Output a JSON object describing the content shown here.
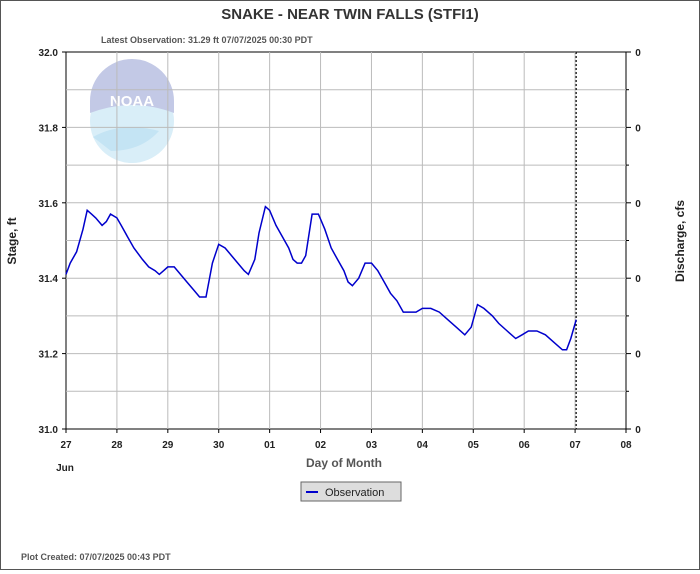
{
  "title": "SNAKE - NEAR TWIN FALLS  (STFI1)",
  "latest_observation": "Latest Observation: 31.29 ft 07/07/2025 00:30 PDT",
  "plot_created": "Plot Created: 07/07/2025 00:43 PDT",
  "logo_text": "NOAA",
  "colors": {
    "series": "#0000cc",
    "grid": "#bbbbbb",
    "marker": "#000000"
  },
  "chart_data": {
    "type": "line",
    "title": "SNAKE - NEAR TWIN FALLS  (STFI1)",
    "xlabel": "Day of Month",
    "ylabel": "Stage, ft",
    "y2label": "Discharge, cfs",
    "month_label": "Jun",
    "x_ticks": [
      "27",
      "28",
      "29",
      "30",
      "01",
      "02",
      "03",
      "04",
      "05",
      "06",
      "07",
      "08"
    ],
    "xlim": [
      "2025-06-27",
      "2025-07-08"
    ],
    "ylim": [
      31.0,
      32.0
    ],
    "y_ticks": [
      "31.0",
      "31.2",
      "31.4",
      "31.6",
      "31.8",
      "32.0"
    ],
    "y2_ticks": [
      "0",
      "0",
      "0",
      "0",
      "0",
      "0"
    ],
    "grid": true,
    "legend": {
      "placement": "bottom-center",
      "entries": [
        "Observation"
      ]
    },
    "latest_time_marker": "2025-07-07 00:30",
    "series": [
      {
        "name": "Observation",
        "points": [
          [
            "2025-06-27 00:00",
            31.41
          ],
          [
            "2025-06-27 02:00",
            31.44
          ],
          [
            "2025-06-27 05:00",
            31.47
          ],
          [
            "2025-06-27 08:00",
            31.53
          ],
          [
            "2025-06-27 10:00",
            31.58
          ],
          [
            "2025-06-27 12:00",
            31.57
          ],
          [
            "2025-06-27 14:00",
            31.56
          ],
          [
            "2025-06-27 17:00",
            31.54
          ],
          [
            "2025-06-27 19:00",
            31.55
          ],
          [
            "2025-06-27 21:00",
            31.57
          ],
          [
            "2025-06-28 00:00",
            31.56
          ],
          [
            "2025-06-28 02:00",
            31.54
          ],
          [
            "2025-06-28 05:00",
            31.51
          ],
          [
            "2025-06-28 08:00",
            31.48
          ],
          [
            "2025-06-28 12:00",
            31.45
          ],
          [
            "2025-06-28 15:00",
            31.43
          ],
          [
            "2025-06-28 18:00",
            31.42
          ],
          [
            "2025-06-28 20:00",
            31.41
          ],
          [
            "2025-06-28 22:00",
            31.42
          ],
          [
            "2025-06-29 00:00",
            31.43
          ],
          [
            "2025-06-29 03:00",
            31.43
          ],
          [
            "2025-06-29 06:00",
            31.41
          ],
          [
            "2025-06-29 09:00",
            31.39
          ],
          [
            "2025-06-29 12:00",
            31.37
          ],
          [
            "2025-06-29 15:00",
            31.35
          ],
          [
            "2025-06-29 18:00",
            31.35
          ],
          [
            "2025-06-29 21:00",
            31.44
          ],
          [
            "2025-06-30 00:00",
            31.49
          ],
          [
            "2025-06-30 03:00",
            31.48
          ],
          [
            "2025-06-30 06:00",
            31.46
          ],
          [
            "2025-06-30 09:00",
            31.44
          ],
          [
            "2025-06-30 12:00",
            31.42
          ],
          [
            "2025-06-30 14:00",
            31.41
          ],
          [
            "2025-06-30 17:00",
            31.45
          ],
          [
            "2025-06-30 19:00",
            31.52
          ],
          [
            "2025-06-30 22:00",
            31.59
          ],
          [
            "2025-07-01 00:00",
            31.58
          ],
          [
            "2025-07-01 03:00",
            31.54
          ],
          [
            "2025-07-01 06:00",
            31.51
          ],
          [
            "2025-07-01 09:00",
            31.48
          ],
          [
            "2025-07-01 11:00",
            31.45
          ],
          [
            "2025-07-01 13:00",
            31.44
          ],
          [
            "2025-07-01 15:00",
            31.44
          ],
          [
            "2025-07-01 17:00",
            31.46
          ],
          [
            "2025-07-01 20:00",
            31.57
          ],
          [
            "2025-07-01 23:00",
            31.57
          ],
          [
            "2025-07-02 02:00",
            31.53
          ],
          [
            "2025-07-02 05:00",
            31.48
          ],
          [
            "2025-07-02 08:00",
            31.45
          ],
          [
            "2025-07-02 11:00",
            31.42
          ],
          [
            "2025-07-02 13:00",
            31.39
          ],
          [
            "2025-07-02 15:00",
            31.38
          ],
          [
            "2025-07-02 18:00",
            31.4
          ],
          [
            "2025-07-02 21:00",
            31.44
          ],
          [
            "2025-07-03 00:00",
            31.44
          ],
          [
            "2025-07-03 03:00",
            31.42
          ],
          [
            "2025-07-03 06:00",
            31.39
          ],
          [
            "2025-07-03 09:00",
            31.36
          ],
          [
            "2025-07-03 12:00",
            31.34
          ],
          [
            "2025-07-03 15:00",
            31.31
          ],
          [
            "2025-07-03 18:00",
            31.31
          ],
          [
            "2025-07-03 21:00",
            31.31
          ],
          [
            "2025-07-04 00:00",
            31.32
          ],
          [
            "2025-07-04 04:00",
            31.32
          ],
          [
            "2025-07-04 08:00",
            31.31
          ],
          [
            "2025-07-04 12:00",
            31.29
          ],
          [
            "2025-07-04 16:00",
            31.27
          ],
          [
            "2025-07-04 20:00",
            31.25
          ],
          [
            "2025-07-04 23:00",
            31.27
          ],
          [
            "2025-07-05 02:00",
            31.33
          ],
          [
            "2025-07-05 05:00",
            31.32
          ],
          [
            "2025-07-05 09:00",
            31.3
          ],
          [
            "2025-07-05 12:00",
            31.28
          ],
          [
            "2025-07-05 16:00",
            31.26
          ],
          [
            "2025-07-05 20:00",
            31.24
          ],
          [
            "2025-07-05 23:00",
            31.25
          ],
          [
            "2025-07-06 02:00",
            31.26
          ],
          [
            "2025-07-06 06:00",
            31.26
          ],
          [
            "2025-07-06 10:00",
            31.25
          ],
          [
            "2025-07-06 14:00",
            31.23
          ],
          [
            "2025-07-06 18:00",
            31.21
          ],
          [
            "2025-07-06 20:00",
            31.21
          ],
          [
            "2025-07-06 22:00",
            31.24
          ],
          [
            "2025-07-07 00:30",
            31.29
          ]
        ]
      }
    ]
  }
}
